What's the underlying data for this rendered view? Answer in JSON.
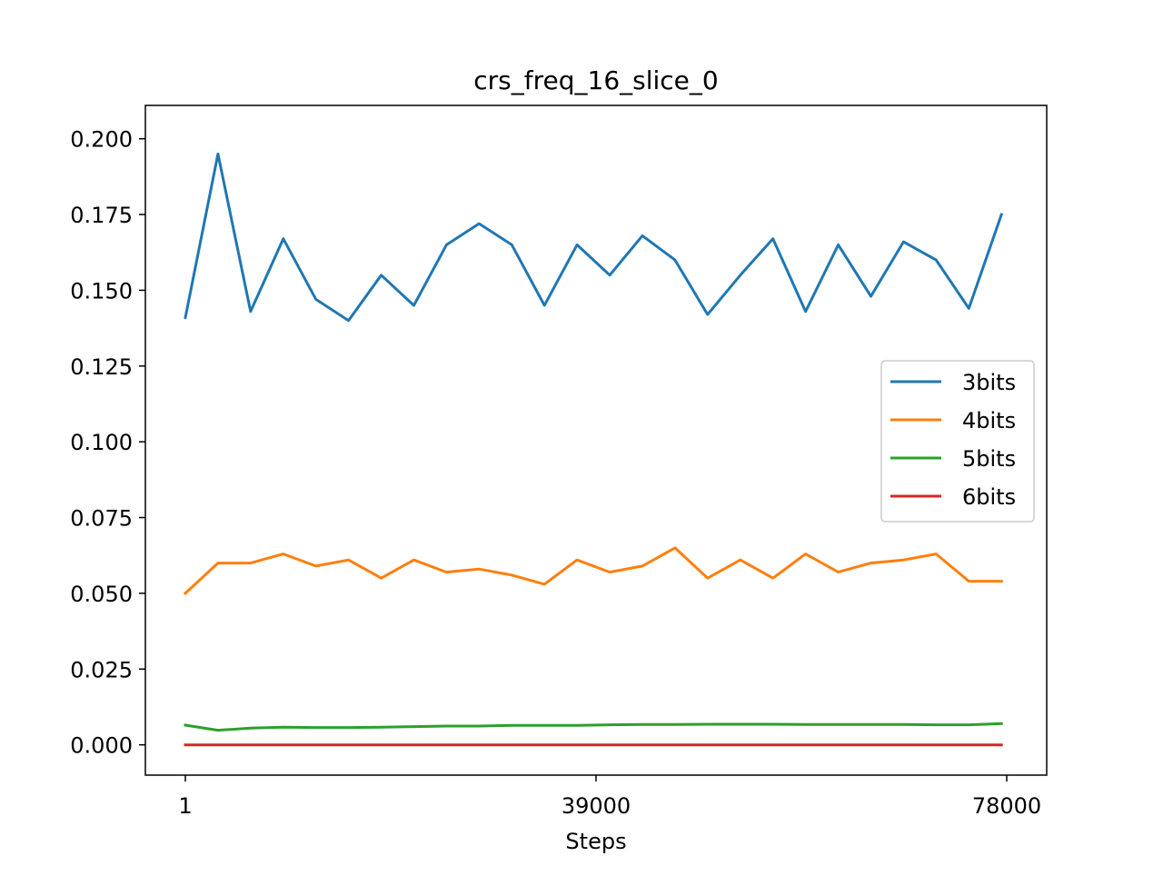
{
  "chart_data": {
    "type": "line",
    "title": "crs_freq_16_slice_0",
    "xlabel": "Steps",
    "ylabel": "",
    "xlim": [
      1,
      78000
    ],
    "ylim": [
      -0.01,
      0.211
    ],
    "x_ticks": [
      1,
      39000,
      78000
    ],
    "x_tick_labels": [
      "1",
      "39000",
      "78000"
    ],
    "y_ticks": [
      0.0,
      0.025,
      0.05,
      0.075,
      0.1,
      0.125,
      0.15,
      0.175,
      0.2
    ],
    "y_tick_labels": [
      "0.000",
      "0.025",
      "0.050",
      "0.075",
      "0.100",
      "0.125",
      "0.150",
      "0.175",
      "0.200"
    ],
    "grid": false,
    "legend_position": "center-right",
    "x": [
      1,
      3100,
      6200,
      9300,
      12400,
      15500,
      18600,
      21700,
      24800,
      27900,
      31000,
      34100,
      37200,
      40300,
      43400,
      46500,
      49600,
      52700,
      55800,
      58900,
      62000,
      65100,
      68200,
      71300,
      74400,
      77500
    ],
    "series": [
      {
        "name": "3bits",
        "color": "#1f77b4",
        "values": [
          0.141,
          0.195,
          0.143,
          0.167,
          0.147,
          0.14,
          0.155,
          0.145,
          0.165,
          0.172,
          0.165,
          0.145,
          0.165,
          0.155,
          0.168,
          0.16,
          0.142,
          0.155,
          0.167,
          0.143,
          0.165,
          0.148,
          0.166,
          0.16,
          0.144,
          0.175
        ]
      },
      {
        "name": "4bits",
        "color": "#ff7f0e",
        "values": [
          0.05,
          0.06,
          0.06,
          0.063,
          0.059,
          0.061,
          0.055,
          0.061,
          0.057,
          0.058,
          0.056,
          0.053,
          0.061,
          0.057,
          0.059,
          0.065,
          0.055,
          0.061,
          0.055,
          0.063,
          0.057,
          0.06,
          0.061,
          0.063,
          0.054,
          0.054
        ]
      },
      {
        "name": "5bits",
        "color": "#2ca02c",
        "values": [
          0.0065,
          0.0048,
          0.0055,
          0.0058,
          0.0057,
          0.0057,
          0.0058,
          0.006,
          0.0062,
          0.0062,
          0.0064,
          0.0064,
          0.0064,
          0.0066,
          0.0067,
          0.0067,
          0.0068,
          0.0068,
          0.0068,
          0.0067,
          0.0067,
          0.0067,
          0.0067,
          0.0066,
          0.0066,
          0.007
        ]
      },
      {
        "name": "6bits",
        "color": "#d62728",
        "values": [
          0.0,
          0.0,
          0.0,
          0.0,
          0.0,
          0.0,
          0.0,
          0.0,
          0.0,
          0.0,
          0.0,
          0.0,
          0.0,
          0.0,
          0.0,
          0.0,
          0.0,
          0.0,
          0.0,
          0.0,
          0.0,
          0.0,
          0.0,
          0.0,
          0.0,
          0.0
        ]
      }
    ]
  }
}
